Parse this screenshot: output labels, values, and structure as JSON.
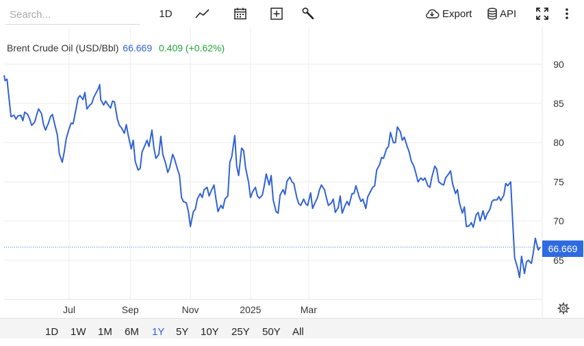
{
  "toolbar": {
    "search_placeholder": "Search...",
    "interval_label": "1D",
    "export_label": "Export",
    "api_label": "API",
    "icons": [
      "line-chart-icon",
      "calendar-icon",
      "add-icon",
      "wrench-icon",
      "cloud-download-icon",
      "database-icon",
      "fullscreen-icon",
      "more-vertical-icon"
    ]
  },
  "legend": {
    "name": "Brent Crude Oil (USD/Bbl)",
    "value": "66.669",
    "change": "0.409 (+0.62%)"
  },
  "colors": {
    "line": "#2f61d6",
    "accent": "#2f6be0",
    "positive": "#21a33a"
  },
  "price_tag": "66.669",
  "ranges": [
    "1D",
    "1W",
    "1M",
    "6M",
    "1Y",
    "5Y",
    "10Y",
    "25Y",
    "50Y",
    "All"
  ],
  "active_range": "1Y",
  "chart_data": {
    "type": "line",
    "series": [
      {
        "name": "Brent Crude Oil (USD/Bbl)",
        "points": [
          [
            "2024-04-26",
            88.6
          ],
          [
            "2024-04-27",
            87.9
          ],
          [
            "2024-04-29",
            88.1
          ],
          [
            "2024-04-30",
            86.8
          ],
          [
            "2024-05-02",
            84.5
          ],
          [
            "2024-05-03",
            83.3
          ],
          [
            "2024-05-06",
            83.5
          ],
          [
            "2024-05-08",
            83.0
          ],
          [
            "2024-05-10",
            83.4
          ],
          [
            "2024-05-13",
            83.5
          ],
          [
            "2024-05-15",
            82.8
          ],
          [
            "2024-05-17",
            83.9
          ],
          [
            "2024-05-20",
            83.6
          ],
          [
            "2024-05-22",
            83.0
          ],
          [
            "2024-05-24",
            82.2
          ],
          [
            "2024-05-27",
            82.6
          ],
          [
            "2024-05-29",
            83.5
          ],
          [
            "2024-05-31",
            84.3
          ],
          [
            "2024-06-03",
            83.7
          ],
          [
            "2024-06-05",
            82.3
          ],
          [
            "2024-06-07",
            81.6
          ],
          [
            "2024-06-10",
            82.5
          ],
          [
            "2024-06-12",
            83.3
          ],
          [
            "2024-06-14",
            83.6
          ],
          [
            "2024-06-17",
            82.0
          ],
          [
            "2024-06-19",
            81.0
          ],
          [
            "2024-06-21",
            78.6
          ],
          [
            "2024-06-24",
            77.5
          ],
          [
            "2024-06-26",
            78.8
          ],
          [
            "2024-06-28",
            80.5
          ],
          [
            "2024-07-01",
            81.8
          ],
          [
            "2024-07-03",
            82.5
          ],
          [
            "2024-07-05",
            82.4
          ],
          [
            "2024-07-08",
            84.3
          ],
          [
            "2024-07-10",
            85.7
          ],
          [
            "2024-07-12",
            86.0
          ],
          [
            "2024-07-15",
            85.5
          ],
          [
            "2024-07-17",
            86.4
          ],
          [
            "2024-07-19",
            84.3
          ],
          [
            "2024-07-22",
            84.8
          ],
          [
            "2024-07-24",
            85.0
          ],
          [
            "2024-07-26",
            85.8
          ],
          [
            "2024-07-29",
            86.5
          ],
          [
            "2024-07-31",
            87.0
          ],
          [
            "2024-08-01",
            87.4
          ],
          [
            "2024-08-02",
            85.5
          ],
          [
            "2024-08-05",
            84.8
          ],
          [
            "2024-08-07",
            85.3
          ],
          [
            "2024-08-09",
            84.9
          ],
          [
            "2024-08-12",
            84.4
          ],
          [
            "2024-08-14",
            85.3
          ],
          [
            "2024-08-16",
            85.2
          ],
          [
            "2024-08-19",
            83.0
          ],
          [
            "2024-08-21",
            82.2
          ],
          [
            "2024-08-23",
            81.9
          ],
          [
            "2024-08-26",
            81.2
          ],
          [
            "2024-08-28",
            82.3
          ],
          [
            "2024-08-30",
            80.9
          ],
          [
            "2024-09-02",
            79.2
          ],
          [
            "2024-09-04",
            80.3
          ],
          [
            "2024-09-06",
            77.6
          ],
          [
            "2024-09-09",
            76.5
          ],
          [
            "2024-09-11",
            76.7
          ],
          [
            "2024-09-13",
            78.8
          ],
          [
            "2024-09-16",
            79.7
          ],
          [
            "2024-09-18",
            80.3
          ],
          [
            "2024-09-20",
            79.5
          ],
          [
            "2024-09-23",
            81.6
          ],
          [
            "2024-09-25",
            79.3
          ],
          [
            "2024-09-27",
            78.0
          ],
          [
            "2024-09-30",
            78.5
          ],
          [
            "2024-10-02",
            80.8
          ],
          [
            "2024-10-04",
            78.5
          ],
          [
            "2024-10-07",
            77.3
          ],
          [
            "2024-10-09",
            76.2
          ],
          [
            "2024-10-11",
            76.8
          ],
          [
            "2024-10-14",
            78.5
          ],
          [
            "2024-10-16",
            77.9
          ],
          [
            "2024-10-18",
            77.0
          ],
          [
            "2024-10-21",
            75.8
          ],
          [
            "2024-10-23",
            73.0
          ],
          [
            "2024-10-25",
            72.5
          ],
          [
            "2024-10-28",
            72.3
          ],
          [
            "2024-10-30",
            71.2
          ],
          [
            "2024-11-01",
            69.3
          ],
          [
            "2024-11-04",
            71.2
          ],
          [
            "2024-11-06",
            71.5
          ],
          [
            "2024-11-08",
            72.8
          ],
          [
            "2024-11-11",
            73.5
          ],
          [
            "2024-11-13",
            73.0
          ],
          [
            "2024-11-15",
            74.0
          ],
          [
            "2024-11-18",
            74.3
          ],
          [
            "2024-11-20",
            73.2
          ],
          [
            "2024-11-22",
            73.8
          ],
          [
            "2024-11-25",
            74.6
          ],
          [
            "2024-11-27",
            72.8
          ],
          [
            "2024-11-29",
            71.2
          ],
          [
            "2024-12-02",
            72.0
          ],
          [
            "2024-12-04",
            71.6
          ],
          [
            "2024-12-06",
            72.8
          ],
          [
            "2024-12-09",
            73.2
          ],
          [
            "2024-12-11",
            77.5
          ],
          [
            "2024-12-13",
            78.2
          ],
          [
            "2024-12-16",
            80.9
          ],
          [
            "2024-12-18",
            77.0
          ],
          [
            "2024-12-20",
            75.8
          ],
          [
            "2024-12-23",
            79.3
          ],
          [
            "2024-12-25",
            79.0
          ],
          [
            "2024-12-27",
            76.8
          ],
          [
            "2024-12-30",
            75.0
          ],
          [
            "2025-01-01",
            73.0
          ],
          [
            "2025-01-03",
            73.7
          ],
          [
            "2025-01-06",
            74.3
          ],
          [
            "2025-01-08",
            73.2
          ],
          [
            "2025-01-10",
            72.9
          ],
          [
            "2025-01-13",
            73.3
          ],
          [
            "2025-01-15",
            74.5
          ],
          [
            "2025-01-17",
            76.0
          ],
          [
            "2025-01-20",
            74.6
          ],
          [
            "2025-01-22",
            75.8
          ],
          [
            "2025-01-24",
            72.7
          ],
          [
            "2025-01-27",
            71.2
          ],
          [
            "2025-01-29",
            71.0
          ],
          [
            "2025-01-31",
            73.3
          ],
          [
            "2025-02-03",
            74.0
          ],
          [
            "2025-02-05",
            73.4
          ],
          [
            "2025-02-07",
            75.1
          ],
          [
            "2025-02-10",
            75.6
          ],
          [
            "2025-02-12",
            75.0
          ],
          [
            "2025-02-14",
            74.8
          ],
          [
            "2025-02-17",
            73.0
          ],
          [
            "2025-02-19",
            72.2
          ],
          [
            "2025-02-21",
            72.0
          ],
          [
            "2025-02-24",
            72.8
          ],
          [
            "2025-02-26",
            72.2
          ],
          [
            "2025-02-28",
            72.0
          ],
          [
            "2025-03-03",
            73.6
          ],
          [
            "2025-03-05",
            71.6
          ],
          [
            "2025-03-07",
            72.2
          ],
          [
            "2025-03-10",
            73.0
          ],
          [
            "2025-03-12",
            74.0
          ],
          [
            "2025-03-14",
            74.6
          ],
          [
            "2025-03-17",
            74.0
          ],
          [
            "2025-03-19",
            73.0
          ],
          [
            "2025-03-21",
            72.0
          ],
          [
            "2025-03-24",
            72.3
          ],
          [
            "2025-03-26",
            72.8
          ],
          [
            "2025-03-28",
            71.1
          ],
          [
            "2025-03-31",
            71.7
          ],
          [
            "2025-04-02",
            73.2
          ],
          [
            "2025-04-04",
            71.0
          ],
          [
            "2025-04-07",
            72.0
          ],
          [
            "2025-04-09",
            72.5
          ],
          [
            "2025-04-11",
            72.0
          ],
          [
            "2025-04-14",
            73.5
          ],
          [
            "2025-04-16",
            73.5
          ],
          [
            "2025-04-18",
            74.5
          ],
          [
            "2025-04-21",
            73.2
          ],
          [
            "2025-04-23",
            72.5
          ],
          [
            "2025-04-25",
            72.8
          ],
          [
            "2025-04-28",
            71.6
          ],
          [
            "2025-04-30",
            73.1
          ],
          [
            "2025-05-02",
            73.6
          ],
          [
            "2025-05-05",
            74.3
          ],
          [
            "2025-05-07",
            74.5
          ],
          [
            "2025-05-09",
            76.5
          ],
          [
            "2025-05-12",
            77.2
          ],
          [
            "2025-05-14",
            78.1
          ],
          [
            "2025-05-16",
            78.0
          ],
          [
            "2025-05-19",
            79.2
          ],
          [
            "2025-05-21",
            79.5
          ],
          [
            "2025-05-23",
            81.3
          ],
          [
            "2025-05-26",
            80.0
          ],
          [
            "2025-05-28",
            80.0
          ],
          [
            "2025-05-30",
            82.0
          ],
          [
            "2025-06-02",
            81.4
          ],
          [
            "2025-06-04",
            80.3
          ],
          [
            "2025-06-06",
            80.7
          ],
          [
            "2025-06-09",
            79.5
          ],
          [
            "2025-06-11",
            78.8
          ],
          [
            "2025-06-13",
            77.7
          ],
          [
            "2025-06-16",
            76.9
          ],
          [
            "2025-06-18",
            76.0
          ],
          [
            "2025-06-20",
            75.0
          ],
          [
            "2025-06-23",
            75.5
          ],
          [
            "2025-06-25",
            75.2
          ],
          [
            "2025-06-27",
            75.5
          ],
          [
            "2025-06-30",
            74.5
          ],
          [
            "2025-07-02",
            74.3
          ],
          [
            "2025-07-04",
            75.6
          ],
          [
            "2025-07-07",
            77.0
          ],
          [
            "2025-07-09",
            76.6
          ],
          [
            "2025-07-11",
            75.0
          ],
          [
            "2025-07-14",
            74.7
          ],
          [
            "2025-07-16",
            74.6
          ],
          [
            "2025-07-18",
            75.5
          ],
          [
            "2025-07-21",
            76.0
          ],
          [
            "2025-07-23",
            76.4
          ],
          [
            "2025-07-25",
            74.8
          ],
          [
            "2025-07-28",
            73.5
          ],
          [
            "2025-07-30",
            74.0
          ],
          [
            "2025-08-01",
            72.3
          ],
          [
            "2025-08-04",
            71.0
          ],
          [
            "2025-08-06",
            71.8
          ],
          [
            "2025-08-08",
            69.3
          ],
          [
            "2025-08-11",
            69.4
          ],
          [
            "2025-08-13",
            69.8
          ],
          [
            "2025-08-15",
            69.2
          ],
          [
            "2025-08-18",
            70.8
          ],
          [
            "2025-08-20",
            71.1
          ],
          [
            "2025-08-22",
            70.0
          ],
          [
            "2025-08-25",
            71.3
          ],
          [
            "2025-08-27",
            70.2
          ],
          [
            "2025-08-29",
            70.9
          ],
          [
            "2025-09-01",
            71.5
          ],
          [
            "2025-09-03",
            72.5
          ],
          [
            "2025-09-05",
            72.7
          ],
          [
            "2025-09-08",
            72.7
          ],
          [
            "2025-09-10",
            73.1
          ],
          [
            "2025-09-12",
            72.6
          ],
          [
            "2025-09-15",
            73.3
          ],
          [
            "2025-09-17",
            74.8
          ],
          [
            "2025-09-19",
            74.5
          ],
          [
            "2025-09-22",
            75.0
          ],
          [
            "2025-09-24",
            70.0
          ],
          [
            "2025-09-26",
            65.3
          ],
          [
            "2025-09-29",
            64.0
          ],
          [
            "2025-10-01",
            62.8
          ],
          [
            "2025-10-03",
            65.5
          ],
          [
            "2025-10-06",
            63.3
          ],
          [
            "2025-10-08",
            64.8
          ],
          [
            "2025-10-10",
            65.0
          ],
          [
            "2025-10-13",
            64.6
          ],
          [
            "2025-10-15",
            66.0
          ],
          [
            "2025-10-17",
            67.8
          ],
          [
            "2025-10-20",
            66.3
          ],
          [
            "2025-10-22",
            66.669
          ]
        ]
      }
    ],
    "x_range": [
      "2024-04-26",
      "2025-10-24"
    ],
    "x_ticks": [
      {
        "date": "2024-07-01",
        "label": "Jul"
      },
      {
        "date": "2024-09-01",
        "label": "Sep"
      },
      {
        "date": "2024-11-01",
        "label": "Nov"
      },
      {
        "date": "2025-01-01",
        "label": "2025"
      },
      {
        "date": "2025-03-01",
        "label": "Mar"
      }
    ],
    "y_ticks": [
      65,
      70,
      75,
      80,
      85,
      90
    ],
    "ylim": [
      60,
      94.7
    ],
    "y_axis_position": "right",
    "last_value": 66.669,
    "grid": true
  }
}
